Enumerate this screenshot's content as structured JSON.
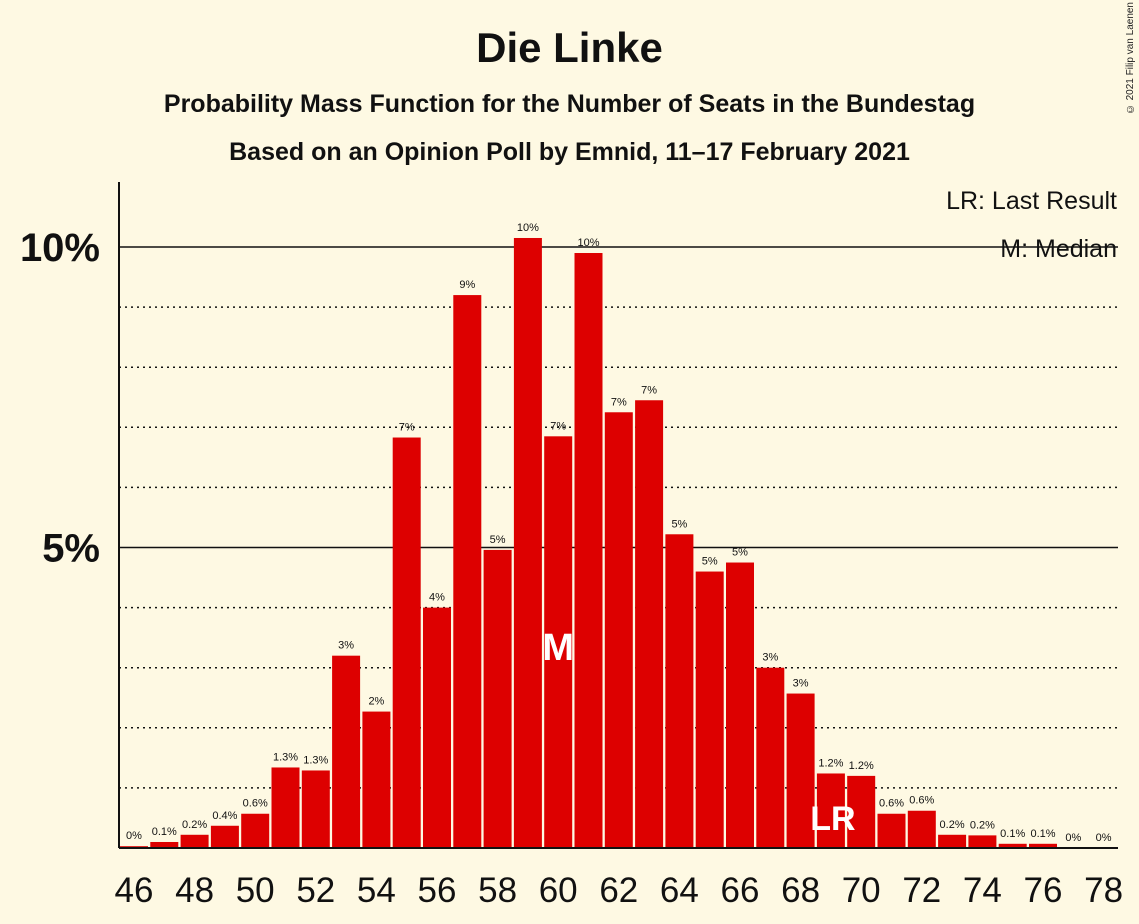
{
  "header": {
    "title": "Die Linke",
    "subtitle": "Probability Mass Function for the Number of Seats in the Bundestag",
    "subtitle2": "Based on an Opinion Poll by Emnid, 11–17 February 2021",
    "copyright": "© 2021 Filip van Laenen"
  },
  "legend": {
    "lr": "LR: Last Result",
    "m": "M: Median"
  },
  "markers": {
    "median_label": "M",
    "median_seat": 60,
    "last_result_label": "LR",
    "last_result_seat": 69
  },
  "colors": {
    "bar": "#dd0000",
    "background": "#fef9e3"
  },
  "chart_data": {
    "type": "bar",
    "title": "Die Linke",
    "xlabel": "",
    "ylabel": "",
    "ylim": [
      0,
      11
    ],
    "y_major_ticks": [
      {
        "value": 5,
        "label": "5%"
      },
      {
        "value": 10,
        "label": "10%"
      }
    ],
    "y_minor_gridlines": [
      1,
      2,
      3,
      4,
      6,
      7,
      8,
      9
    ],
    "x_tick_labels": [
      46,
      48,
      50,
      52,
      54,
      56,
      58,
      60,
      62,
      64,
      66,
      68,
      70,
      72,
      74,
      76,
      78
    ],
    "categories": [
      46,
      47,
      48,
      49,
      50,
      51,
      52,
      53,
      54,
      55,
      56,
      57,
      58,
      59,
      60,
      61,
      62,
      63,
      64,
      65,
      66,
      67,
      68,
      69,
      70,
      71,
      72,
      73,
      74,
      75,
      76,
      77,
      78
    ],
    "values": [
      0.03,
      0.1,
      0.22,
      0.37,
      0.57,
      1.34,
      1.29,
      3.2,
      2.27,
      6.83,
      4.0,
      9.2,
      4.96,
      10.15,
      6.85,
      9.9,
      7.25,
      7.45,
      5.22,
      4.6,
      4.75,
      3.0,
      2.57,
      1.24,
      1.2,
      0.57,
      0.62,
      0.22,
      0.21,
      0.07,
      0.07,
      0.0,
      0.0
    ],
    "labels": [
      "0%",
      "0.1%",
      "0.2%",
      "0.4%",
      "0.6%",
      "1.3%",
      "1.3%",
      "3%",
      "2%",
      "7%",
      "4%",
      "9%",
      "5%",
      "10%",
      "7%",
      "10%",
      "7%",
      "7%",
      "5%",
      "5%",
      "5%",
      "3%",
      "3%",
      "1.2%",
      "1.2%",
      "0.6%",
      "0.6%",
      "0.2%",
      "0.2%",
      "0.1%",
      "0.1%",
      "0%",
      "0%"
    ],
    "grid": true,
    "legend_position": "top-right"
  }
}
